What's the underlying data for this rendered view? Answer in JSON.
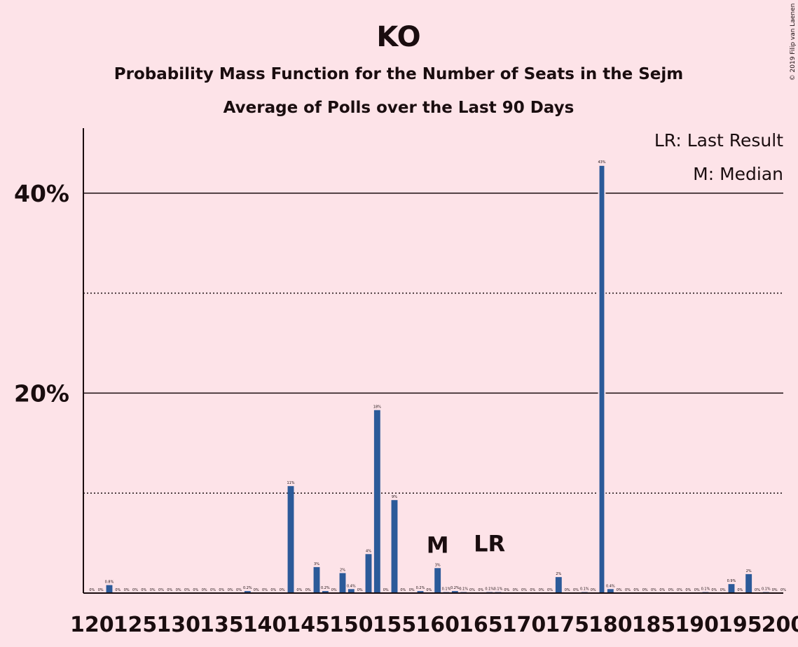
{
  "header": {
    "title": "KO",
    "subtitle1": "Probability Mass Function for the Number of Seats in the Sejm",
    "subtitle2": "Average of Polls over the Last 90 Days",
    "copyright": "© 2019 Filip van Laenen"
  },
  "legend": {
    "last_result": "LR: Last Result",
    "median": "M: Median"
  },
  "colors": {
    "background": "#fde3e8",
    "bar": "#2b5a99",
    "text": "#1a0d0f"
  },
  "chart_data": {
    "type": "bar",
    "title": "KO",
    "xlabel": "",
    "ylabel": "",
    "ylim": [
      0,
      46.5
    ],
    "xlim": [
      119,
      200
    ],
    "ytick_labels": [
      {
        "value": 20,
        "label": "20%"
      },
      {
        "value": 40,
        "label": "40%"
      }
    ],
    "xtick_labels": [
      {
        "value": 120,
        "label": "120"
      },
      {
        "value": 125,
        "label": "125"
      },
      {
        "value": 130,
        "label": "130"
      },
      {
        "value": 135,
        "label": "135"
      },
      {
        "value": 140,
        "label": "140"
      },
      {
        "value": 145,
        "label": "145"
      },
      {
        "value": 150,
        "label": "150"
      },
      {
        "value": 155,
        "label": "155"
      },
      {
        "value": 160,
        "label": "160"
      },
      {
        "value": 165,
        "label": "165"
      },
      {
        "value": 170,
        "label": "170"
      },
      {
        "value": 175,
        "label": "175"
      },
      {
        "value": 180,
        "label": "180"
      },
      {
        "value": 185,
        "label": "185"
      },
      {
        "value": 190,
        "label": "190"
      },
      {
        "value": 195,
        "label": "195"
      },
      {
        "value": 200,
        "label": "200"
      }
    ],
    "gridlines": {
      "solid": [
        20,
        40
      ],
      "dotted": [
        10,
        30
      ]
    },
    "median_seat": 160,
    "median_label": "M",
    "last_result_seat": 166,
    "last_result_label": "LR",
    "bars": [
      {
        "x": 120,
        "value": 0.0,
        "label": "0%"
      },
      {
        "x": 121,
        "value": 0.0,
        "label": "0%"
      },
      {
        "x": 122,
        "value": 0.8,
        "label": "0.8%"
      },
      {
        "x": 123,
        "value": 0.0,
        "label": "0%"
      },
      {
        "x": 124,
        "value": 0.0,
        "label": "0%"
      },
      {
        "x": 125,
        "value": 0.0,
        "label": "0%"
      },
      {
        "x": 126,
        "value": 0.0,
        "label": "0%"
      },
      {
        "x": 127,
        "value": 0.0,
        "label": "0%"
      },
      {
        "x": 128,
        "value": 0.0,
        "label": "0%"
      },
      {
        "x": 129,
        "value": 0.0,
        "label": "0%"
      },
      {
        "x": 130,
        "value": 0.0,
        "label": "0%"
      },
      {
        "x": 131,
        "value": 0.0,
        "label": "0%"
      },
      {
        "x": 132,
        "value": 0.0,
        "label": "0%"
      },
      {
        "x": 133,
        "value": 0.0,
        "label": "0%"
      },
      {
        "x": 134,
        "value": 0.0,
        "label": "0%"
      },
      {
        "x": 135,
        "value": 0.0,
        "label": "0%"
      },
      {
        "x": 136,
        "value": 0.0,
        "label": "0%"
      },
      {
        "x": 137,
        "value": 0.0,
        "label": "0%"
      },
      {
        "x": 138,
        "value": 0.2,
        "label": "0.2%"
      },
      {
        "x": 139,
        "value": 0.0,
        "label": "0%"
      },
      {
        "x": 140,
        "value": 0.0,
        "label": "0%"
      },
      {
        "x": 141,
        "value": 0.0,
        "label": "0%"
      },
      {
        "x": 142,
        "value": 0.0,
        "label": "0%"
      },
      {
        "x": 143,
        "value": 10.7,
        "label": "11%"
      },
      {
        "x": 144,
        "value": 0.0,
        "label": "0%"
      },
      {
        "x": 145,
        "value": 0.0,
        "label": "0%"
      },
      {
        "x": 146,
        "value": 2.6,
        "label": "3%"
      },
      {
        "x": 147,
        "value": 0.2,
        "label": "0.2%"
      },
      {
        "x": 148,
        "value": 0.0,
        "label": "0%"
      },
      {
        "x": 149,
        "value": 2.0,
        "label": "2%"
      },
      {
        "x": 150,
        "value": 0.4,
        "label": "0.4%"
      },
      {
        "x": 151,
        "value": 0.0,
        "label": "0%"
      },
      {
        "x": 152,
        "value": 3.9,
        "label": "4%"
      },
      {
        "x": 153,
        "value": 18.3,
        "label": "18%"
      },
      {
        "x": 154,
        "value": 0.0,
        "label": "0%"
      },
      {
        "x": 155,
        "value": 9.3,
        "label": "9%"
      },
      {
        "x": 156,
        "value": 0.0,
        "label": "0%"
      },
      {
        "x": 157,
        "value": 0.0,
        "label": "0%"
      },
      {
        "x": 158,
        "value": 0.2,
        "label": "0.2%"
      },
      {
        "x": 159,
        "value": 0.0,
        "label": "0%"
      },
      {
        "x": 160,
        "value": 2.5,
        "label": "3%"
      },
      {
        "x": 161,
        "value": 0.1,
        "label": "0.1%"
      },
      {
        "x": 162,
        "value": 0.2,
        "label": "0.2%"
      },
      {
        "x": 163,
        "value": 0.1,
        "label": "0.1%"
      },
      {
        "x": 164,
        "value": 0.0,
        "label": "0%"
      },
      {
        "x": 165,
        "value": 0.0,
        "label": "0%"
      },
      {
        "x": 166,
        "value": 0.1,
        "label": "0.1%"
      },
      {
        "x": 167,
        "value": 0.1,
        "label": "0.1%"
      },
      {
        "x": 168,
        "value": 0.0,
        "label": "0%"
      },
      {
        "x": 169,
        "value": 0.0,
        "label": "0%"
      },
      {
        "x": 170,
        "value": 0.0,
        "label": "0%"
      },
      {
        "x": 171,
        "value": 0.0,
        "label": "0%"
      },
      {
        "x": 172,
        "value": 0.0,
        "label": "0%"
      },
      {
        "x": 173,
        "value": 0.0,
        "label": "0%"
      },
      {
        "x": 174,
        "value": 1.6,
        "label": "2%"
      },
      {
        "x": 175,
        "value": 0.0,
        "label": "0%"
      },
      {
        "x": 176,
        "value": 0.0,
        "label": "0%"
      },
      {
        "x": 177,
        "value": 0.1,
        "label": "0.1%"
      },
      {
        "x": 178,
        "value": 0.0,
        "label": "0%"
      },
      {
        "x": 179,
        "value": 42.8,
        "label": "43%"
      },
      {
        "x": 180,
        "value": 0.4,
        "label": "0.4%"
      },
      {
        "x": 181,
        "value": 0.0,
        "label": "0%"
      },
      {
        "x": 182,
        "value": 0.0,
        "label": "0%"
      },
      {
        "x": 183,
        "value": 0.0,
        "label": "0%"
      },
      {
        "x": 184,
        "value": 0.0,
        "label": "0%"
      },
      {
        "x": 185,
        "value": 0.0,
        "label": "0%"
      },
      {
        "x": 186,
        "value": 0.0,
        "label": "0%"
      },
      {
        "x": 187,
        "value": 0.0,
        "label": "0%"
      },
      {
        "x": 188,
        "value": 0.0,
        "label": "0%"
      },
      {
        "x": 189,
        "value": 0.0,
        "label": "0%"
      },
      {
        "x": 190,
        "value": 0.0,
        "label": "0%"
      },
      {
        "x": 191,
        "value": 0.1,
        "label": "0.1%"
      },
      {
        "x": 192,
        "value": 0.0,
        "label": "0%"
      },
      {
        "x": 193,
        "value": 0.0,
        "label": "0%"
      },
      {
        "x": 194,
        "value": 0.9,
        "label": "0.9%"
      },
      {
        "x": 195,
        "value": 0.0,
        "label": "0%"
      },
      {
        "x": 196,
        "value": 1.9,
        "label": "2%"
      },
      {
        "x": 197,
        "value": 0.0,
        "label": "0%"
      },
      {
        "x": 198,
        "value": 0.1,
        "label": "0.1%"
      },
      {
        "x": 199,
        "value": 0.0,
        "label": "0%"
      },
      {
        "x": 200,
        "value": 0.0,
        "label": "0%"
      }
    ]
  }
}
